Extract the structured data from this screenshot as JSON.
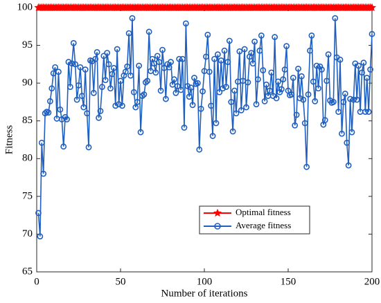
{
  "chart_data": {
    "type": "line",
    "xlabel": "Number of iterations",
    "ylabel": "Fitness",
    "xlim": [
      0,
      200
    ],
    "ylim": [
      65,
      100
    ],
    "xticks": [
      0,
      50,
      100,
      150,
      200
    ],
    "yticks": [
      65,
      70,
      75,
      80,
      85,
      90,
      95,
      100
    ],
    "legend": "lower right",
    "x": [
      1,
      2,
      3,
      4,
      5,
      6,
      7,
      8,
      9,
      10,
      11,
      12,
      13,
      14,
      15,
      16,
      17,
      18,
      19,
      20,
      21,
      22,
      23,
      24,
      25,
      26,
      27,
      28,
      29,
      30,
      31,
      32,
      33,
      34,
      35,
      36,
      37,
      38,
      39,
      40,
      41,
      42,
      43,
      44,
      45,
      46,
      47,
      48,
      49,
      50,
      51,
      52,
      53,
      54,
      55,
      56,
      57,
      58,
      59,
      60,
      61,
      62,
      63,
      64,
      65,
      66,
      67,
      68,
      69,
      70,
      71,
      72,
      73,
      74,
      75,
      76,
      77,
      78,
      79,
      80,
      81,
      82,
      83,
      84,
      85,
      86,
      87,
      88,
      89,
      90,
      91,
      92,
      93,
      94,
      95,
      96,
      97,
      98,
      99,
      100,
      101,
      102,
      103,
      104,
      105,
      106,
      107,
      108,
      109,
      110,
      111,
      112,
      113,
      114,
      115,
      116,
      117,
      118,
      119,
      120,
      121,
      122,
      123,
      124,
      125,
      126,
      127,
      128,
      129,
      130,
      131,
      132,
      133,
      134,
      135,
      136,
      137,
      138,
      139,
      140,
      141,
      142,
      143,
      144,
      145,
      146,
      147,
      148,
      149,
      150,
      151,
      152,
      153,
      154,
      155,
      156,
      157,
      158,
      159,
      160,
      161,
      162,
      163,
      164,
      165,
      166,
      167,
      168,
      169,
      170,
      171,
      172,
      173,
      174,
      175,
      176,
      177,
      178,
      179,
      180,
      181,
      182,
      183,
      184,
      185,
      186,
      187,
      188,
      189,
      190,
      191,
      192,
      193,
      194,
      195,
      196,
      197,
      198,
      199,
      200
    ],
    "series": [
      {
        "name": "Optimal fitness",
        "color": "#ff0000",
        "marker": "star",
        "values": [
          100,
          100,
          100,
          100,
          100,
          100,
          100,
          100,
          100,
          100,
          100,
          100,
          100,
          100,
          100,
          100,
          100,
          100,
          100,
          100,
          100,
          100,
          100,
          100,
          100,
          100,
          100,
          100,
          100,
          100,
          100,
          100,
          100,
          100,
          100,
          100,
          100,
          100,
          100,
          100,
          100,
          100,
          100,
          100,
          100,
          100,
          100,
          100,
          100,
          100,
          100,
          100,
          100,
          100,
          100,
          100,
          100,
          100,
          100,
          100,
          100,
          100,
          100,
          100,
          100,
          100,
          100,
          100,
          100,
          100,
          100,
          100,
          100,
          100,
          100,
          100,
          100,
          100,
          100,
          100,
          100,
          100,
          100,
          100,
          100,
          100,
          100,
          100,
          100,
          100,
          100,
          100,
          100,
          100,
          100,
          100,
          100,
          100,
          100,
          100,
          100,
          100,
          100,
          100,
          100,
          100,
          100,
          100,
          100,
          100,
          100,
          100,
          100,
          100,
          100,
          100,
          100,
          100,
          100,
          100,
          100,
          100,
          100,
          100,
          100,
          100,
          100,
          100,
          100,
          100,
          100,
          100,
          100,
          100,
          100,
          100,
          100,
          100,
          100,
          100,
          100,
          100,
          100,
          100,
          100,
          100,
          100,
          100,
          100,
          100,
          100,
          100,
          100,
          100,
          100,
          100,
          100,
          100,
          100,
          100,
          100,
          100,
          100,
          100,
          100,
          100,
          100,
          100,
          100,
          100,
          100,
          100,
          100,
          100,
          100,
          100,
          100,
          100,
          100,
          100,
          100,
          100,
          100,
          100,
          100,
          100,
          100,
          100,
          100,
          100,
          100,
          100,
          100,
          100,
          100,
          100,
          100,
          100,
          100,
          100
        ]
      },
      {
        "name": "Average fitness",
        "color": "#1f5fbf",
        "marker": "circle",
        "values": [
          72.8,
          69.7,
          82.1,
          78.0,
          86.0,
          86.2,
          86.1,
          87.6,
          89.3,
          91.3,
          92.1,
          85.3,
          91.5,
          86.5,
          85.2,
          81.6,
          85.5,
          85.2,
          92.8,
          89.5,
          92.6,
          95.3,
          92.5,
          87.8,
          89.7,
          92.1,
          88.3,
          86.8,
          91.8,
          86.0,
          81.5,
          93.0,
          92.9,
          88.7,
          93.2,
          94.1,
          85.4,
          86.3,
          89.5,
          93.6,
          90.4,
          94.0,
          92.5,
          89.3,
          91.2,
          92.0,
          87.0,
          94.5,
          87.2,
          90.3,
          87.0,
          91.0,
          91.5,
          92.2,
          96.6,
          91.0,
          98.6,
          88.8,
          86.8,
          87.5,
          92.3,
          83.5,
          88.3,
          88.5,
          90.1,
          90.3,
          96.8,
          91.6,
          93.2,
          92.6,
          91.4,
          93.6,
          92.8,
          89.0,
          94.4,
          92.0,
          87.9,
          92.5,
          92.1,
          92.8,
          89.8,
          90.5,
          88.7,
          89.6,
          93.2,
          89.1,
          93.2,
          84.1,
          97.9,
          89.6,
          88.2,
          89.4,
          87.1,
          90.7,
          89.9,
          90.0,
          81.2,
          86.6,
          88.9,
          91.6,
          93.5,
          96.4,
          91.5,
          87.0,
          83.0,
          93.2,
          84.7,
          93.8,
          88.8,
          93.0,
          89.3,
          94.3,
          89.5,
          92.8,
          95.6,
          87.5,
          83.6,
          89.0,
          86.0,
          90.2,
          94.2,
          86.4,
          90.3,
          94.5,
          86.8,
          90.1,
          93.5,
          94.0,
          92.6,
          95.5,
          87.2,
          90.5,
          94.3,
          96.3,
          91.7,
          87.6,
          89.8,
          88.3,
          89.0,
          91.4,
          88.3,
          96.1,
          88.0,
          90.2,
          88.8,
          89.2,
          90.5,
          91.8,
          94.9,
          89.0,
          88.4,
          88.5,
          90.7,
          84.4,
          85.8,
          91.9,
          88.0,
          90.9,
          87.8,
          84.7,
          78.9,
          88.5,
          94.3,
          96.3,
          90.2,
          87.6,
          92.3,
          89.3,
          92.2,
          91.8,
          84.5,
          85.1,
          90.3,
          93.8,
          87.7,
          87.4,
          87.5,
          98.6,
          93.4,
          86.2,
          93.1,
          83.3,
          87.5,
          88.6,
          82.1,
          79.1,
          87.9,
          83.5,
          87.8,
          92.6,
          87.8,
          92.3,
          86.2,
          91.4,
          92.7,
          86.2,
          90.7,
          86.2,
          91.8,
          96.5
        ]
      }
    ]
  }
}
